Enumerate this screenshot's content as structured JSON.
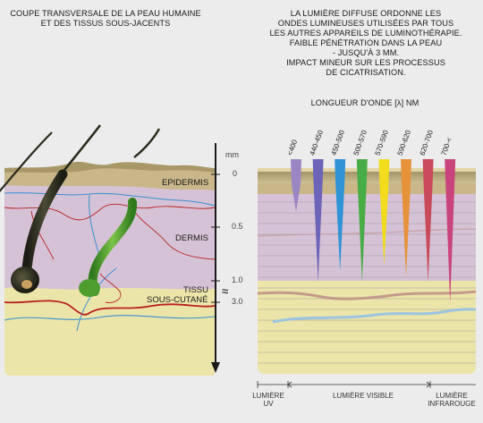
{
  "left_panel": {
    "title_lines": [
      "COUPE TRANSVERSALE DE LA PEAU HUMAINE",
      "ET DES TISSUS SOUS-JACENTS"
    ],
    "layers": {
      "epidermis": "EPIDERMIS",
      "dermis": "DERMIS",
      "subcutaneous_line1": "TISSU",
      "subcutaneous_line2": "SOUS-CUTANÉ"
    },
    "colors": {
      "epidermis": "#c9b78a",
      "dermis": "#d6c2d6",
      "subcutaneous": "#ece5a9",
      "hair": "#2a2a1e",
      "gland": "#4e9d2f",
      "vessel_red": "#b82020",
      "vessel_blue": "#3a8fd1"
    }
  },
  "scale": {
    "unit": "mm",
    "ticks": [
      "0",
      "0.5",
      "1.0",
      "3.0"
    ],
    "break_symbol": "≈"
  },
  "right_panel": {
    "title_lines": [
      "LA LUMIÈRE DIFFUSE ORDONNE LES",
      "ONDES LUMINEUSES UTILISÉES PAR TOUS",
      "LES AUTRES APPAREILS DE LUMINOTHÉRAPIE.",
      "FAIBLE PÉNÉTRATION DANS LA PEAU",
      "- JUSQU'À 3 MM.",
      "IMPACT MINEUR SUR LES PROCESSUS",
      "DE CICATRISATION."
    ],
    "wavelength_title": "LONGUEUR D'ONDE [λ] NM",
    "bands": [
      {
        "label": "<400",
        "color": "#9b86c4",
        "depth_mm": 0.35
      },
      {
        "label": "440-450",
        "color": "#6c64b8",
        "depth_mm": 1.0
      },
      {
        "label": "450-500",
        "color": "#2f93d6",
        "depth_mm": 0.9
      },
      {
        "label": "500-570",
        "color": "#48ad46",
        "depth_mm": 1.0
      },
      {
        "label": "570-590",
        "color": "#f1dd1e",
        "depth_mm": 0.85
      },
      {
        "label": "590-620",
        "color": "#e6923a",
        "depth_mm": 0.95
      },
      {
        "label": "620-700",
        "color": "#c94a5a",
        "depth_mm": 1.0
      },
      {
        "label": "700-<",
        "color": "#c9447d",
        "depth_mm": 3.0
      }
    ],
    "bottom_labels": {
      "uv_line1": "LUMIÈRE",
      "uv_line2": "UV",
      "visible": "LUMIÈRE VISIBLE",
      "ir_line1": "LUMIÈRE",
      "ir_line2": "INFRAROUGE"
    }
  }
}
